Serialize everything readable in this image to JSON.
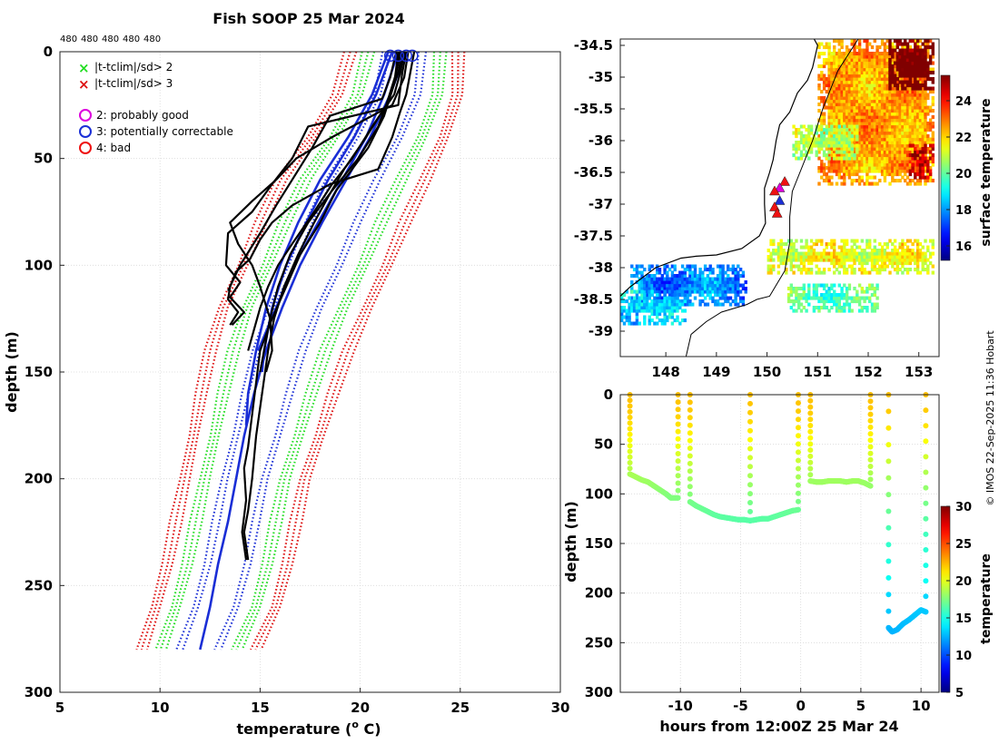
{
  "title": "Fish SOOP 25 Mar 2024",
  "count_labels": [
    "480",
    "480",
    "480",
    "480",
    "480"
  ],
  "watermark": "© IMOS 22-Sep-2025 11:36 Hobart",
  "colors": {
    "climatology_2sd": "#22dd22",
    "climatology_3sd": "#dd1111",
    "mean_profile": "#1a2ed6",
    "mean_dotted": "#1a2ed6",
    "profile": "#000000",
    "flag_probably_good": "#dd00dd",
    "flag_correctable": "#1a2ed6",
    "flag_bad": "#ee1111",
    "coast": "#000000"
  },
  "legend": {
    "cross_2sd": "|t-tclim|/sd> 2",
    "cross_3sd": "|t-tclim|/sd> 3",
    "flag_2": "2: probably good",
    "flag_3": "3: potentially correctable",
    "flag_4": "4: bad"
  },
  "chart_data": [
    {
      "id": "profiles",
      "type": "line",
      "xlabel": "temperature (o C)",
      "xlabel_main": "temperature (",
      "xlabel_sup": "o",
      "xlabel_end": " C)",
      "ylabel": "depth (m)",
      "xlim": [
        5,
        30
      ],
      "ylim": [
        300,
        0
      ],
      "xticks": [
        5,
        10,
        15,
        20,
        25,
        30
      ],
      "yticks": [
        0,
        50,
        100,
        150,
        200,
        250,
        300
      ],
      "grid": true,
      "depth_levels": [
        0,
        20,
        40,
        60,
        80,
        100,
        120,
        140,
        160,
        180,
        200,
        220,
        240,
        260,
        280
      ],
      "climatology": {
        "mean": [
          22.2,
          21.8,
          20.9,
          19.7,
          18.6,
          17.7,
          16.8,
          16.0,
          15.3,
          14.8,
          14.3,
          13.8,
          13.3,
          12.8,
          12.0
        ],
        "sd": [
          0.9,
          1.0,
          1.1,
          1.2,
          1.2,
          1.2,
          1.2,
          1.15,
          1.1,
          1.05,
          1.0,
          1.0,
          1.0,
          1.0,
          0.95
        ]
      },
      "profiles": [
        {
          "name": "p1",
          "depth": [
            0,
            10,
            20,
            28,
            40,
            55,
            62,
            72,
            80,
            88,
            97,
            103,
            110,
            116,
            122,
            128
          ],
          "temp": [
            22.7,
            22.5,
            22.3,
            22.0,
            21.6,
            20.9,
            18.5,
            16.6,
            15.6,
            15.0,
            14.5,
            13.8,
            13.5,
            13.4,
            13.9,
            13.5
          ]
        },
        {
          "name": "p2",
          "depth": [
            0,
            10,
            25,
            35,
            50,
            62,
            75,
            85,
            100,
            108,
            115,
            122,
            128
          ],
          "temp": [
            22.3,
            22.1,
            21.9,
            17.4,
            16.6,
            15.6,
            14.6,
            13.4,
            13.3,
            14.0,
            13.5,
            14.2,
            13.6
          ]
        },
        {
          "name": "p3",
          "depth": [
            0,
            12,
            25,
            40,
            50,
            60,
            70,
            80,
            90,
            100,
            110,
            125,
            140,
            150
          ],
          "temp": [
            22.4,
            22.2,
            21.6,
            18.6,
            16.8,
            15.8,
            14.6,
            13.5,
            13.9,
            14.6,
            15.0,
            15.5,
            15.6,
            15.3
          ]
        },
        {
          "name": "p4",
          "depth": [
            0,
            10,
            20,
            35,
            50,
            62,
            75,
            90,
            100,
            110,
            120,
            130,
            140
          ],
          "temp": [
            22.2,
            22.0,
            21.7,
            20.6,
            19.6,
            18.6,
            17.7,
            16.6,
            15.9,
            15.4,
            15.0,
            14.7,
            14.4
          ]
        },
        {
          "name": "p5",
          "depth": [
            0,
            15,
            30,
            45,
            55,
            65,
            80,
            95,
            110,
            125,
            140,
            155,
            170,
            185,
            195,
            210,
            225,
            238
          ],
          "temp": [
            21.9,
            21.7,
            21.2,
            20.4,
            19.6,
            18.8,
            18.0,
            17.0,
            16.3,
            15.6,
            15.0,
            14.8,
            14.6,
            14.4,
            14.2,
            14.3,
            14.1,
            14.3
          ]
        },
        {
          "name": "p6",
          "depth": [
            0,
            10,
            25,
            40,
            55,
            68,
            80,
            95,
            110,
            125,
            140,
            160,
            180,
            200,
            215,
            225,
            238
          ],
          "temp": [
            22.0,
            21.8,
            21.3,
            20.3,
            19.2,
            18.4,
            17.7,
            16.9,
            16.2,
            15.7,
            15.4,
            15.1,
            14.8,
            14.6,
            14.4,
            14.2,
            14.4
          ]
        },
        {
          "name": "p7",
          "depth": [
            0,
            10,
            20,
            35,
            50,
            65,
            80,
            95,
            110,
            125,
            140,
            150
          ],
          "temp": [
            22.1,
            21.9,
            21.5,
            20.9,
            19.9,
            18.6,
            17.4,
            16.5,
            15.9,
            15.5,
            15.2,
            15.0
          ]
        },
        {
          "name": "p8",
          "depth": [
            0,
            12,
            22,
            30,
            45,
            60,
            72,
            85,
            100,
            112
          ],
          "temp": [
            21.8,
            21.5,
            21.1,
            18.5,
            17.6,
            16.6,
            15.8,
            15.0,
            14.0,
            13.4
          ]
        }
      ],
      "blue_profiles": [
        {
          "name": "b1",
          "depth": [
            0,
            20,
            40,
            60,
            80,
            100,
            120,
            140,
            160,
            175
          ],
          "temp": [
            21.4,
            20.6,
            19.4,
            18.0,
            16.9,
            16.0,
            15.3,
            14.8,
            14.4,
            14.3
          ]
        },
        {
          "name": "b2",
          "depth": [
            0,
            20,
            40,
            60,
            80,
            100,
            120,
            140,
            150
          ],
          "temp": [
            21.6,
            20.8,
            19.7,
            18.4,
            17.3,
            16.3,
            15.6,
            15.2,
            15.1
          ]
        },
        {
          "name": "b3",
          "depth": [
            0,
            20,
            40,
            60,
            80,
            100,
            120,
            140
          ],
          "temp": [
            21.9,
            21.2,
            20.3,
            19.1,
            17.9,
            16.7,
            15.8,
            14.9
          ]
        },
        {
          "name": "b4",
          "depth": [
            0,
            20,
            40,
            60,
            80,
            100,
            120,
            140,
            160,
            180,
            200,
            220,
            240,
            260,
            280
          ],
          "temp": [
            22.3,
            21.5,
            20.5,
            19.3,
            18.1,
            17.0,
            16.1,
            15.3,
            14.7,
            14.2,
            13.8,
            13.4,
            12.9,
            12.5,
            12.0
          ]
        }
      ],
      "flag_markers": [
        {
          "temp": 21.5,
          "depth": 1,
          "flag": 3
        },
        {
          "temp": 21.9,
          "depth": 1,
          "flag": 3
        },
        {
          "temp": 22.3,
          "depth": 1,
          "flag": 3
        },
        {
          "temp": 22.6,
          "depth": 1,
          "flag": 3
        }
      ]
    },
    {
      "id": "map",
      "type": "heatmap",
      "xlabel": "longitude",
      "ylabel": "latitude",
      "xlim": [
        147.1,
        153.4
      ],
      "ylim": [
        -39.4,
        -34.4
      ],
      "xticks": [
        148,
        149,
        150,
        151,
        152,
        153
      ],
      "yticks": [
        -34.5,
        -35,
        -35.5,
        -36,
        -36.5,
        -37,
        -37.5,
        -38,
        -38.5,
        -39
      ],
      "colorbar_label": "surface temperature",
      "colorbar_range": [
        15.2,
        25.4
      ],
      "colorbar_ticks": [
        16,
        18,
        20,
        22,
        24
      ],
      "sst_patches": [
        {
          "lon": [
            151.0,
            153.3
          ],
          "lat": [
            -36.7,
            -34.45
          ],
          "sst": 22.5
        },
        {
          "lon": [
            152.4,
            153.3
          ],
          "lat": [
            -35.2,
            -34.4
          ],
          "sst": 26.0
        },
        {
          "lon": [
            150.5,
            151.8
          ],
          "lat": [
            -36.3,
            -35.8
          ],
          "sst": 20.8
        },
        {
          "lon": [
            152.8,
            153.3
          ],
          "lat": [
            -36.6,
            -36.1
          ],
          "sst": 24.5
        },
        {
          "lon": [
            147.3,
            149.6
          ],
          "lat": [
            -38.6,
            -38.0
          ],
          "sst": 17.8
        },
        {
          "lon": [
            147.1,
            148.4
          ],
          "lat": [
            -38.9,
            -38.4
          ],
          "sst": 18.6
        },
        {
          "lon": [
            150.0,
            153.3
          ],
          "lat": [
            -38.1,
            -37.6
          ],
          "sst": 21.4
        },
        {
          "lon": [
            150.4,
            152.2
          ],
          "lat": [
            -38.7,
            -38.3
          ],
          "sst": 19.9
        }
      ],
      "drop_locations": [
        {
          "lon": 150.35,
          "lat": -36.65,
          "flag": 4
        },
        {
          "lon": 150.25,
          "lat": -36.75,
          "flag": 2
        },
        {
          "lon": 150.15,
          "lat": -36.8,
          "flag": 4
        },
        {
          "lon": 150.25,
          "lat": -36.95,
          "flag": 3
        },
        {
          "lon": 150.15,
          "lat": -37.05,
          "flag": 4
        },
        {
          "lon": 150.2,
          "lat": -37.15,
          "flag": 4
        }
      ]
    },
    {
      "id": "timeseries",
      "type": "scatter",
      "xlabel": "hours from 12:00Z 25 Mar 24",
      "ylabel": "depth (m)",
      "xlim": [
        -15,
        11.5
      ],
      "ylim": [
        300,
        0
      ],
      "xticks": [
        -10,
        -5,
        0,
        5,
        10
      ],
      "yticks": [
        0,
        50,
        100,
        150,
        200,
        250,
        300
      ],
      "colorbar_label": "temperature",
      "colorbar_range": [
        5,
        30
      ],
      "colorbar_ticks": [
        5,
        10,
        15,
        20,
        25,
        30
      ],
      "casts": [
        {
          "t": [
            -14.2,
            -14.2,
            -13.7,
            -13.2,
            -12.7,
            -12.2,
            -11.7,
            -11.2,
            -10.8,
            -10.2,
            -10.2
          ],
          "bottom": [
            0,
            80,
            83,
            86,
            88,
            92,
            96,
            100,
            104,
            104,
            0
          ]
        },
        {
          "t": [
            -9.2,
            -9.2,
            -8.7,
            -8.2,
            -7.7,
            -7.2,
            -6.7,
            -6.2,
            -5.7,
            -5.2,
            -4.7,
            -4.2,
            -4.2
          ],
          "bottom": [
            0,
            108,
            112,
            115,
            118,
            121,
            123,
            124,
            125,
            126,
            126,
            127,
            0
          ]
        },
        {
          "t": [
            -4.2,
            -3.7,
            -3.2,
            -2.7,
            -2.2,
            -1.7,
            -1.2,
            -0.7,
            -0.2,
            -0.2
          ],
          "bottom": [
            127,
            126,
            125,
            125,
            123,
            121,
            119,
            117,
            116,
            0
          ]
        },
        {
          "t": [
            0.8,
            0.8,
            1.3,
            1.8,
            2.3,
            2.8,
            3.3,
            3.8,
            4.3,
            4.8,
            5.3,
            5.8,
            5.8
          ],
          "bottom": [
            0,
            87,
            88,
            88,
            87,
            87,
            87,
            88,
            87,
            87,
            89,
            92,
            0
          ]
        },
        {
          "t": [
            7.3,
            7.3,
            7.6,
            8.0,
            8.5,
            9.0,
            9.5,
            10.0,
            10.4,
            10.4
          ],
          "bottom": [
            0,
            235,
            239,
            237,
            231,
            227,
            222,
            217,
            219,
            0
          ]
        }
      ]
    }
  ]
}
